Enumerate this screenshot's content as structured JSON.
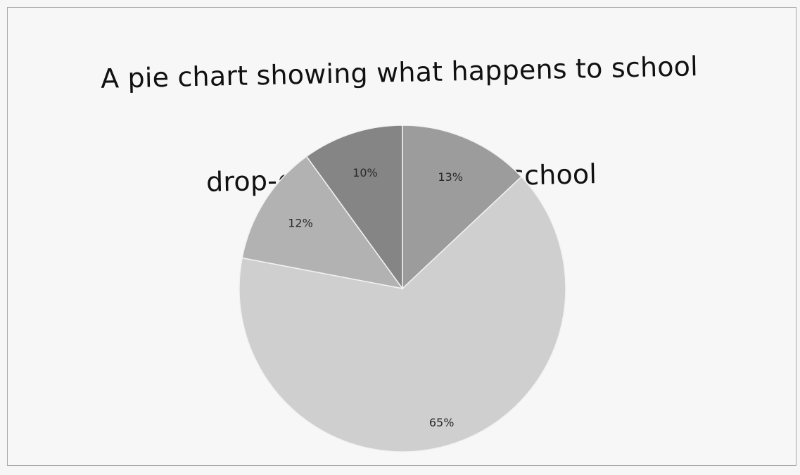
{
  "chart_data": {
    "type": "pie",
    "title": "A pie chart showing what happens to school drop-out after leaving school",
    "title_lines": [
      "A pie chart showing what happens to school",
      "drop-out after leaving school"
    ],
    "slices": [
      {
        "value": 13,
        "label": "13%",
        "color": "#9c9c9c"
      },
      {
        "value": 65,
        "label": "65%",
        "color": "#cfcfcf"
      },
      {
        "value": 12,
        "label": "12%",
        "color": "#b2b2b2"
      },
      {
        "value": 10,
        "label": "10%",
        "color": "#858585"
      }
    ],
    "start_angle_deg": 0,
    "direction": "clockwise",
    "legend": "none"
  }
}
